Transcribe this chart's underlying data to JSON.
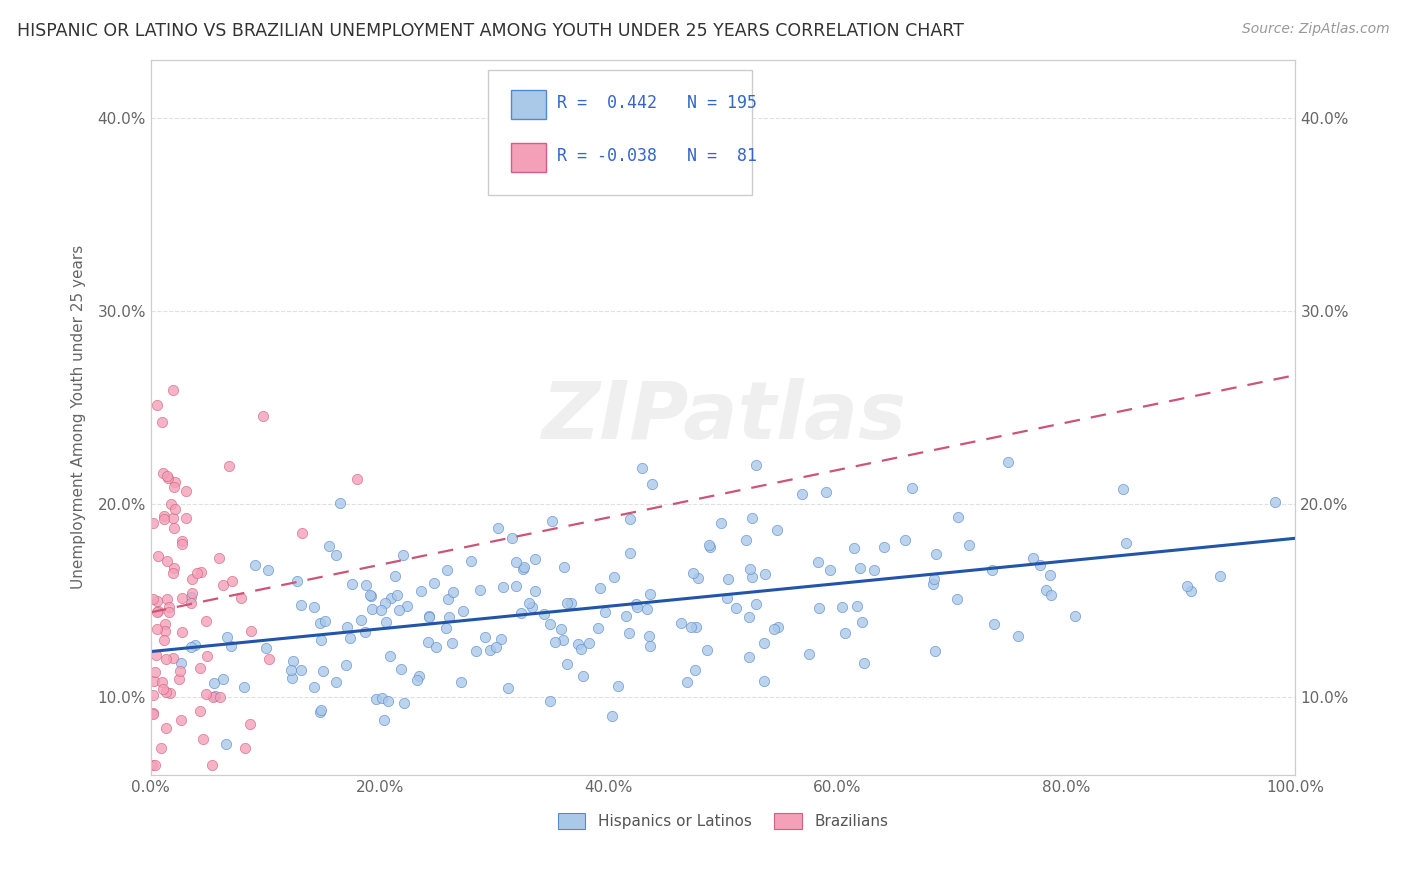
{
  "title": "HISPANIC OR LATINO VS BRAZILIAN UNEMPLOYMENT AMONG YOUTH UNDER 25 YEARS CORRELATION CHART",
  "source": "Source: ZipAtlas.com",
  "ylabel": "Unemployment Among Youth under 25 years",
  "watermark": "ZIPatlas",
  "xlim": [
    0,
    1.0
  ],
  "ylim": [
    0.06,
    0.43
  ],
  "xticks": [
    0.0,
    0.2,
    0.4,
    0.6,
    0.8,
    1.0
  ],
  "xtick_labels": [
    "0.0%",
    "20.0%",
    "40.0%",
    "60.0%",
    "80.0%",
    "100.0%"
  ],
  "yticks": [
    0.1,
    0.2,
    0.3,
    0.4
  ],
  "ytick_labels": [
    "10.0%",
    "20.0%",
    "30.0%",
    "40.0%"
  ],
  "series1_color": "#aac8e8",
  "series1_edge": "#5588cc",
  "series2_color": "#f4a0b8",
  "series2_edge": "#d06080",
  "trend1_color": "#2255aa",
  "trend2_color": "#cc5577",
  "R1": 0.442,
  "N1": 195,
  "R2": -0.038,
  "N2": 81,
  "legend1": "Hispanics or Latinos",
  "legend2": "Brazilians",
  "title_color": "#333333",
  "source_color": "#999999",
  "axis_color": "#cccccc",
  "grid_color": "#dddddd",
  "background_color": "#ffffff",
  "watermark_color": "#cccccc",
  "seed1": 42,
  "seed2": 77
}
